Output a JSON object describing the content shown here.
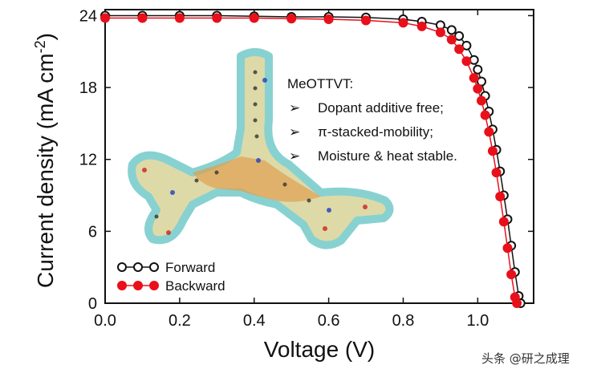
{
  "chart_data": {
    "type": "scatter",
    "xlabel": "Voltage (V)",
    "ylabel_main": "Current density (mA cm",
    "ylabel_sup": "-2",
    "ylabel_end": ")",
    "xlim": [
      0.0,
      1.15
    ],
    "ylim": [
      0,
      24.5
    ],
    "xticks": [
      "0.0",
      "0.2",
      "0.4",
      "0.6",
      "0.8",
      "1.0"
    ],
    "xtick_values": [
      0.0,
      0.2,
      0.4,
      0.6,
      0.8,
      1.0
    ],
    "yticks": [
      "0",
      "6",
      "12",
      "18",
      "24"
    ],
    "ytick_values": [
      0,
      6,
      12,
      18,
      24
    ],
    "legend_position": "bottom-left",
    "series": [
      {
        "name": "Forward",
        "color": "#111111",
        "x": [
          0.0,
          0.1,
          0.2,
          0.3,
          0.4,
          0.5,
          0.6,
          0.7,
          0.8,
          0.85,
          0.9,
          0.93,
          0.95,
          0.97,
          0.99,
          1.0,
          1.01,
          1.02,
          1.03,
          1.04,
          1.05,
          1.06,
          1.07,
          1.08,
          1.09,
          1.1,
          1.11,
          1.115
        ],
        "y": [
          24.0,
          24.0,
          24.0,
          24.0,
          23.95,
          23.9,
          23.9,
          23.85,
          23.7,
          23.5,
          23.2,
          22.8,
          22.3,
          21.5,
          20.3,
          19.5,
          18.5,
          17.3,
          16.0,
          14.5,
          12.8,
          11.0,
          9.0,
          7.0,
          4.8,
          2.6,
          0.6,
          0.0
        ]
      },
      {
        "name": "Backward",
        "color": "#e8101a",
        "x": [
          0.0,
          0.1,
          0.2,
          0.3,
          0.4,
          0.5,
          0.6,
          0.7,
          0.8,
          0.85,
          0.9,
          0.93,
          0.95,
          0.97,
          0.99,
          1.0,
          1.01,
          1.02,
          1.03,
          1.04,
          1.05,
          1.06,
          1.07,
          1.08,
          1.09,
          1.1,
          1.105
        ],
        "y": [
          23.8,
          23.8,
          23.8,
          23.8,
          23.8,
          23.75,
          23.7,
          23.6,
          23.4,
          23.1,
          22.6,
          22.0,
          21.2,
          20.2,
          18.8,
          17.9,
          16.9,
          15.7,
          14.3,
          12.7,
          10.9,
          8.9,
          6.8,
          4.6,
          2.4,
          0.5,
          0.0
        ]
      }
    ],
    "annotation": {
      "title": "MeOTTVT:",
      "bullet": "➢",
      "items": [
        "Dopant additive free;",
        "π-stacked-mobility;",
        "Moisture & heat stable."
      ]
    }
  },
  "watermark": "头条 @研之成理",
  "colors": {
    "frame": "#111111",
    "forward": "#111111",
    "backward": "#e8101a",
    "molecule_surface": "#d8d49a",
    "molecule_edge": "#74c9c9",
    "molecule_core": "#e0a050"
  }
}
